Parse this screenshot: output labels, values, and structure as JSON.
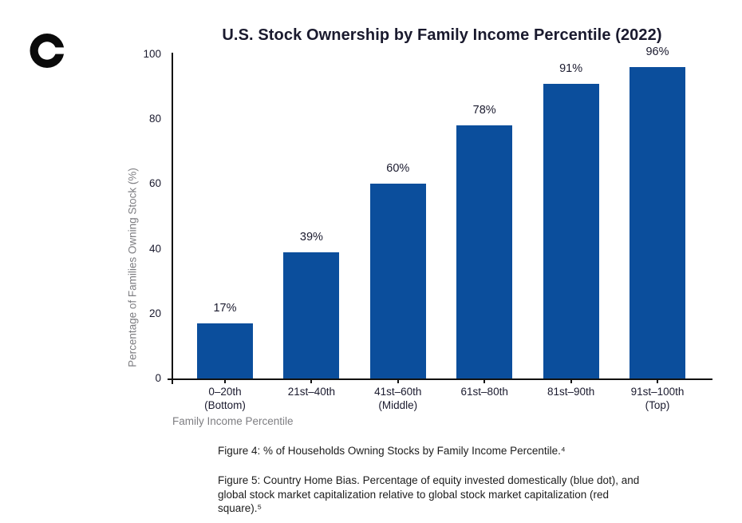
{
  "logo": {
    "name": "c-mark-logo",
    "color": "#0a0a0a"
  },
  "colors": {
    "bar": "#0b4e9c",
    "title_text": "#1a1a2e",
    "secondary_text": "#7e7e82",
    "logo": "#0a0a0a"
  },
  "chart_data": {
    "type": "bar",
    "title": "U.S. Stock Ownership by Family Income Percentile (2022)",
    "xlabel": "Family Income Percentile",
    "ylabel": "Percentage of Families Owning Stock (%)",
    "categories": [
      "0–20th\n(Bottom)",
      "21st–40th",
      "41st–60th\n(Middle)",
      "61st–80th",
      "81st–90th",
      "91st–100th\n(Top)"
    ],
    "values": [
      17,
      39,
      60,
      78,
      91,
      96
    ],
    "bar_labels": [
      "17%",
      "39%",
      "60%",
      "78%",
      "91%",
      "96%"
    ],
    "ylim": [
      0,
      100
    ],
    "yticks": [
      0,
      20,
      40,
      60,
      80,
      100
    ],
    "grid": false,
    "legend_position": "none",
    "bar_color": "#0b4e9c"
  },
  "captions": {
    "figure4": "Figure 4: % of Households Owning Stocks by Family Income Percentile.⁴",
    "figure5": "Figure 5: Country Home Bias. Percentage of equity invested domestically (blue dot), and\nglobal stock market capitalization relative to global stock market capitalization (red\nsquare).⁵"
  }
}
